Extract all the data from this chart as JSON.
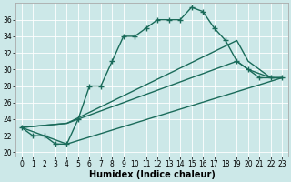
{
  "xlabel": "Humidex (Indice chaleur)",
  "bg_color": "#cce8e8",
  "line_color": "#1a6b5a",
  "ylim": [
    19.5,
    38
  ],
  "xlim": [
    -0.5,
    23.5
  ],
  "yticks": [
    20,
    22,
    24,
    26,
    28,
    30,
    32,
    34,
    36
  ],
  "xticks": [
    0,
    1,
    2,
    3,
    4,
    5,
    6,
    7,
    8,
    9,
    10,
    11,
    12,
    13,
    14,
    15,
    16,
    17,
    18,
    19,
    20,
    21,
    22,
    23
  ],
  "series1_x": [
    0,
    1,
    2,
    3,
    4,
    5,
    6,
    7,
    8,
    9,
    10,
    11,
    12,
    13,
    14,
    15,
    16,
    17,
    18,
    19,
    20,
    21,
    22,
    23
  ],
  "series1_y": [
    23,
    22,
    22,
    21,
    21,
    24,
    28,
    28,
    31,
    34,
    34,
    35,
    36,
    36,
    36,
    37.5,
    37,
    35,
    33.5,
    31,
    30,
    29,
    29,
    29
  ],
  "series2_x": [
    0,
    4,
    23
  ],
  "series2_y": [
    23,
    21,
    29
  ],
  "series3_x": [
    0,
    4,
    19,
    20,
    21,
    22,
    23
  ],
  "series3_y": [
    23,
    23.5,
    31,
    30,
    29.5,
    29,
    29
  ],
  "series4_x": [
    0,
    4,
    19,
    20,
    21,
    22,
    23
  ],
  "series4_y": [
    23,
    23.5,
    33.5,
    31,
    30,
    29,
    29
  ],
  "marker": "+",
  "markersize": 4,
  "linewidth": 1.0,
  "tick_fontsize": 5.5,
  "xlabel_fontsize": 7
}
